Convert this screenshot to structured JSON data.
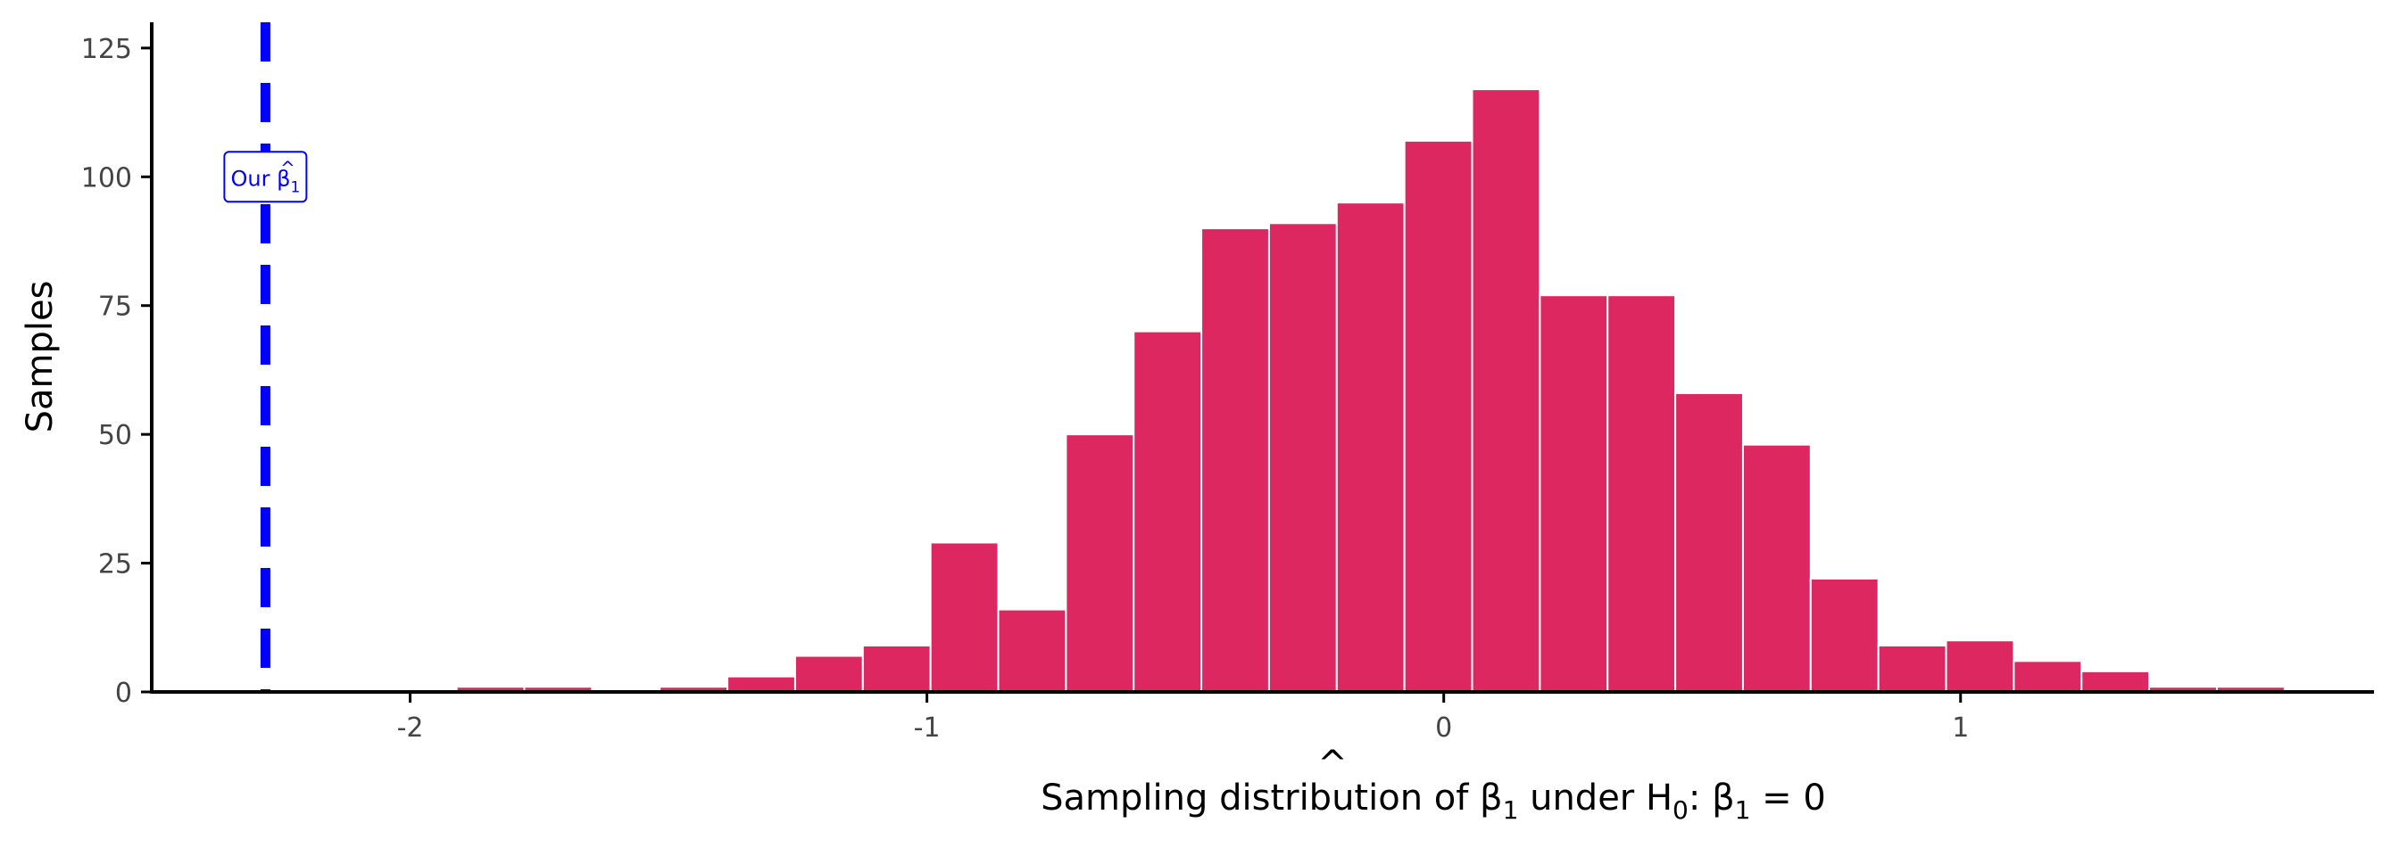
{
  "colors": {
    "bar_fill": "#dc2760",
    "bar_stroke": "#ffffff",
    "vline": "#0000ff",
    "axis": "#000000",
    "tick_text": "#444444",
    "background": "#ffffff"
  },
  "chart_data": {
    "type": "bar",
    "subtype": "histogram",
    "title": "",
    "xlabel": {
      "main": "Sampling distribution of β",
      "hat": "^",
      "sub1": "1",
      "mid": " under H",
      "sub2": "0",
      "colon": ":  β",
      "sub3": "1",
      "tail": " = 0"
    },
    "ylabel": "Samples",
    "xlim": [
      -2.5,
      1.8
    ],
    "ylim": [
      0,
      130
    ],
    "x_ticks": [
      -2,
      -1,
      0,
      1
    ],
    "x_tick_labels": [
      "-2",
      "-1",
      "0",
      "1"
    ],
    "y_ticks": [
      0,
      25,
      50,
      75,
      100,
      125
    ],
    "y_tick_labels": [
      "0",
      "25",
      "50",
      "75",
      "100",
      "125"
    ],
    "bin_width": 0.131,
    "bins": [
      {
        "x0": -1.91,
        "x1": -1.779,
        "count": 1
      },
      {
        "x0": -1.779,
        "x1": -1.648,
        "count": 1
      },
      {
        "x0": -1.517,
        "x1": -1.386,
        "count": 1
      },
      {
        "x0": -1.386,
        "x1": -1.255,
        "count": 3
      },
      {
        "x0": -1.255,
        "x1": -1.124,
        "count": 7
      },
      {
        "x0": -1.124,
        "x1": -0.993,
        "count": 9
      },
      {
        "x0": -0.993,
        "x1": -0.862,
        "count": 29
      },
      {
        "x0": -0.862,
        "x1": -0.731,
        "count": 16
      },
      {
        "x0": -0.731,
        "x1": -0.6,
        "count": 50
      },
      {
        "x0": -0.6,
        "x1": -0.469,
        "count": 70
      },
      {
        "x0": -0.469,
        "x1": -0.338,
        "count": 90
      },
      {
        "x0": -0.338,
        "x1": -0.207,
        "count": 91
      },
      {
        "x0": -0.207,
        "x1": -0.076,
        "count": 95
      },
      {
        "x0": -0.076,
        "x1": 0.055,
        "count": 107
      },
      {
        "x0": 0.055,
        "x1": 0.186,
        "count": 117
      },
      {
        "x0": 0.186,
        "x1": 0.317,
        "count": 77
      },
      {
        "x0": 0.317,
        "x1": 0.448,
        "count": 77
      },
      {
        "x0": 0.448,
        "x1": 0.579,
        "count": 58
      },
      {
        "x0": 0.579,
        "x1": 0.71,
        "count": 48
      },
      {
        "x0": 0.71,
        "x1": 0.841,
        "count": 22
      },
      {
        "x0": 0.841,
        "x1": 0.972,
        "count": 9
      },
      {
        "x0": 0.972,
        "x1": 1.103,
        "count": 10
      },
      {
        "x0": 1.103,
        "x1": 1.234,
        "count": 6
      },
      {
        "x0": 1.234,
        "x1": 1.365,
        "count": 4
      },
      {
        "x0": 1.365,
        "x1": 1.496,
        "count": 1
      },
      {
        "x0": 1.496,
        "x1": 1.627,
        "count": 1
      }
    ],
    "reference_line": {
      "x": -2.28,
      "style": "dashed",
      "label": {
        "text": "Our β",
        "hat": "^",
        "sub": "1",
        "y": 100
      }
    },
    "grid": false,
    "legend": "none"
  }
}
